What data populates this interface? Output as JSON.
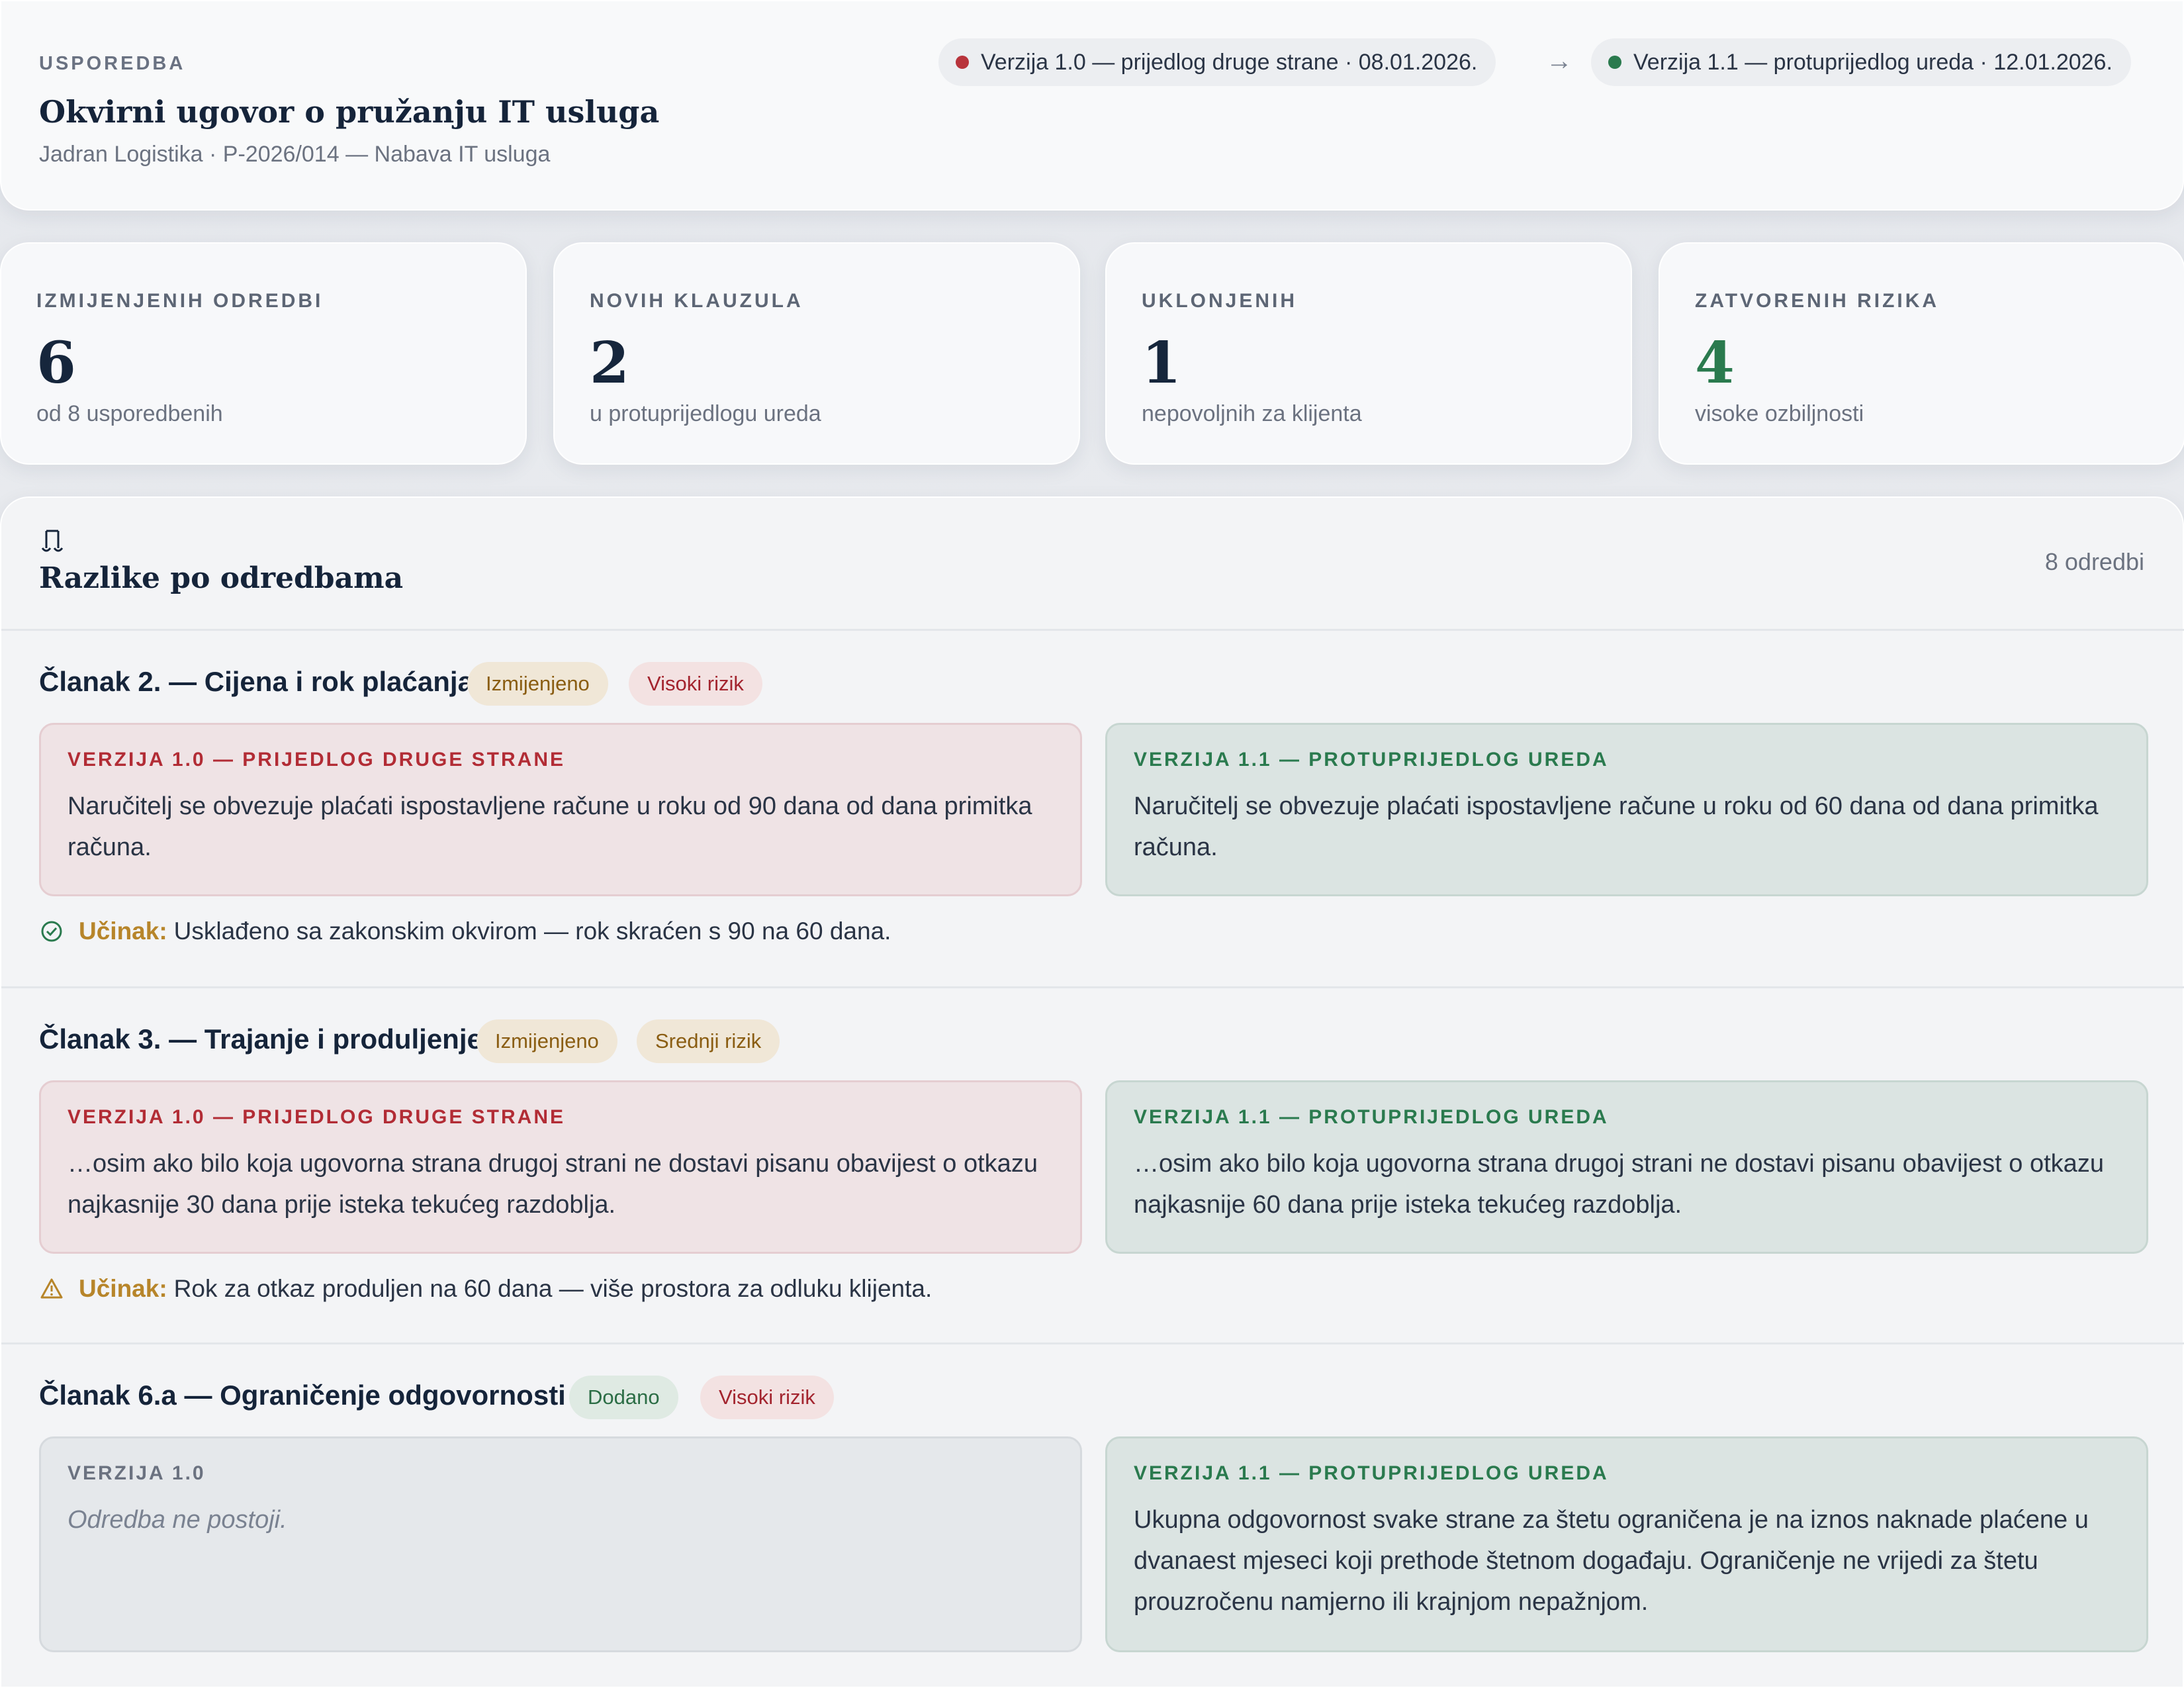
{
  "header": {
    "eyebrow": "USPOREDBA",
    "title": "Okvirni ugovor o pružanju IT usluga",
    "subtitle": "Jadran Logistika · P-2026/014 — Nabava IT usluga",
    "version_old": "Verzija 1.0 — prijedlog druge strane · 08.01.2026.",
    "version_new": "Verzija 1.1 — protuprijedlog ureda · 12.01.2026.",
    "arrow": "→"
  },
  "stats": [
    {
      "label": "IZMIJENJENIH ODREDBI",
      "value": "6",
      "note": "od 8 usporedbenih"
    },
    {
      "label": "NOVIH KLAUZULA",
      "value": "2",
      "note": "u protuprijedlogu ureda"
    },
    {
      "label": "UKLONJENIH",
      "value": "1",
      "note": "nepovoljnih za klijenta"
    },
    {
      "label": "ZATVORENIH RIZIKA",
      "value": "4",
      "note": "visoke ozbiljnosti"
    }
  ],
  "section": {
    "title": "Razlike po odredbama",
    "count": "8 odredbi",
    "icon": "scale-icon"
  },
  "articles": [
    {
      "title": "Članak 2. — Cijena i rok plaćanja",
      "badges": [
        "Izmijenjeno",
        "Visoki rizik"
      ],
      "old_head": "VERZIJA 1.0 — PRIJEDLOG DRUGE STRANE",
      "old_text": "Naručitelj se obvezuje plaćati ispostavljene račune u roku od 90 dana od dana primitka računa.",
      "new_head": "VERZIJA 1.1 — PROTUPRIJEDLOG UREDA",
      "new_text": "Naručitelj se obvezuje plaćati ispostavljene račune u roku od 60 dana od dana primitka računa.",
      "effect_key": "Učinak:",
      "effect_text": "Usklađeno sa zakonskim okvirom — rok skraćen s 90 na 60 dana.",
      "effect_icon": "check-circle-icon"
    },
    {
      "title": "Članak 3. — Trajanje i produljenje",
      "badges": [
        "Izmijenjeno",
        "Srednji rizik"
      ],
      "old_head": "VERZIJA 1.0 — PRIJEDLOG DRUGE STRANE",
      "old_text": "…osim ako bilo koja ugovorna strana drugoj strani ne dostavi pisanu obavijest o otkazu najkasnije 30 dana prije isteka tekućeg razdoblja.",
      "new_head": "VERZIJA 1.1 — PROTUPRIJEDLOG UREDA",
      "new_text": "…osim ako bilo koja ugovorna strana drugoj strani ne dostavi pisanu obavijest o otkazu najkasnije 60 dana prije isteka tekućeg razdoblja.",
      "effect_key": "Učinak:",
      "effect_text": "Rok za otkaz produljen na 60 dana — više prostora za odluku klijenta.",
      "effect_icon": "warning-icon"
    },
    {
      "title": "Članak 6.a — Ograničenje odgovornosti",
      "badges": [
        "Dodano",
        "Visoki rizik"
      ],
      "old_head": "VERZIJA 1.0",
      "old_text": "Odredba ne postoji.",
      "new_head": "VERZIJA 1.1 — PROTUPRIJEDLOG UREDA",
      "new_text": "Ukupna odgovornost svake strane za štetu ograničena je na iznos naknade plaćene u dvanaest mjeseci koji prethode štetnom događaju. Ograničenje ne vrijedi za štetu prouzročenu namjerno ili krajnjom nepažnjom."
    }
  ],
  "colors": {
    "old_dot": "#b8343c",
    "new_dot": "#2a7a4e",
    "stat_green": "#2a7a4e"
  }
}
